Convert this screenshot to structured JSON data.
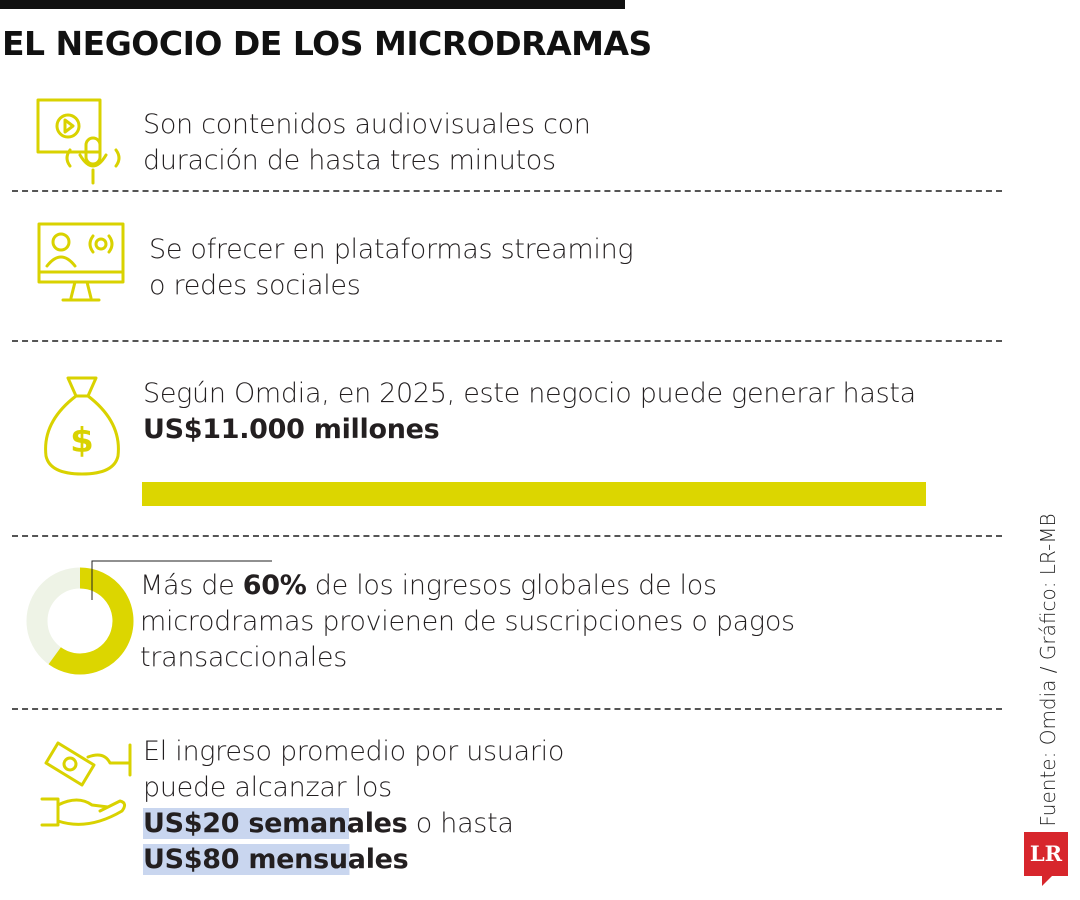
{
  "title": "EL NEGOCIO DE LOS MICRODRAMAS",
  "items": [
    {
      "lines": [
        "Son contenidos audiovisuales con",
        "duración de hasta tres minutos"
      ]
    },
    {
      "lines": [
        "Se ofrecer en plataformas streaming",
        "o redes sociales"
      ]
    },
    {
      "lines": [
        "Según Omdia, en 2025, este negocio puede generar hasta"
      ],
      "highlight": "US$11.000 millones"
    },
    {
      "prefix": "Más de",
      "share": {
        "value": 60,
        "label": "60%"
      },
      "lines": [
        "de los ingresos globales de los",
        "microdramas provienen de suscripciones o pagos",
        "transaccionales"
      ]
    },
    {
      "lines": [
        "El ingreso promedio por usuario",
        "puede alcanzar los"
      ],
      "weekly": "US$20 semanales",
      "connector": "o hasta",
      "monthly": "US$80 mensuales"
    }
  ],
  "source": "Fuente: Omdia / Gráfico: LR-MB",
  "logo": "LR"
}
